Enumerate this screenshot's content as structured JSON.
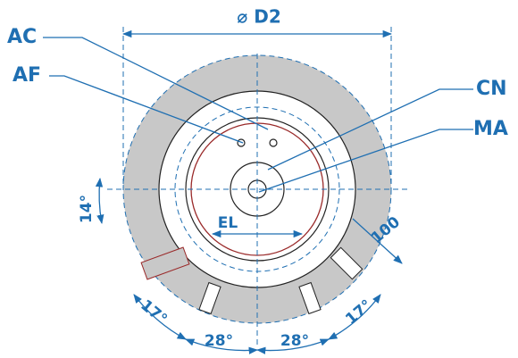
{
  "diameter_label": "⌀ D2",
  "callouts": [
    {
      "label": "AC"
    },
    {
      "label": "AF"
    },
    {
      "label": "CN"
    },
    {
      "label": "MA"
    }
  ],
  "dimensions": [
    {
      "label": "14°"
    },
    {
      "label": "EL"
    },
    {
      "label": "100"
    },
    {
      "label": "17°"
    },
    {
      "label": "28°"
    },
    {
      "label": "28°"
    },
    {
      "label": "17°"
    }
  ]
}
